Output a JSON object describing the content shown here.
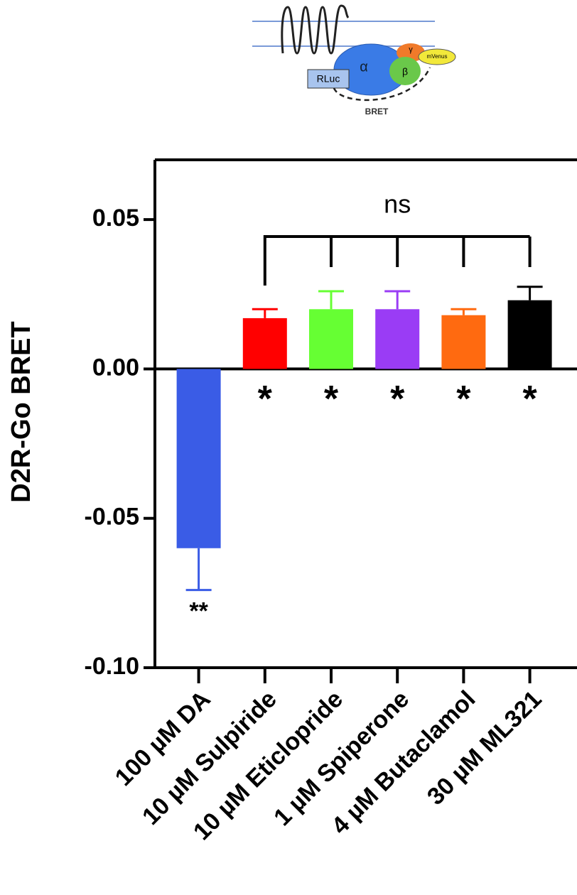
{
  "schematic": {
    "labels": [
      "RLuc",
      "α",
      "β",
      "γ",
      "mVenus",
      "BRET"
    ]
  },
  "chart_data": {
    "type": "bar",
    "ylabel": "D2R-Go BRET",
    "categories": [
      "100 µM DA",
      "10 µM Sulpiride",
      "10 µM Eticlopride",
      "1 µM Spiperone",
      "4 µM Butaclamol",
      "30 µM ML321"
    ],
    "values": [
      -0.06,
      0.017,
      0.02,
      0.02,
      0.018,
      0.023
    ],
    "errors": [
      0.014,
      0.003,
      0.006,
      0.006,
      0.002,
      0.0045
    ],
    "colors": [
      "#3a5ce6",
      "#ff0000",
      "#66ff33",
      "#9a3cf5",
      "#ff6a10",
      "#000000"
    ],
    "significance": [
      "**",
      "*",
      "*",
      "*",
      "*",
      "*"
    ],
    "bracket_label": "ns",
    "ylim": [
      -0.1,
      0.07
    ],
    "yticks": [
      {
        "value": -0.1,
        "label": "-0.10"
      },
      -0.05,
      {
        "value": 0,
        "label": "0.00"
      },
      0.05
    ]
  }
}
